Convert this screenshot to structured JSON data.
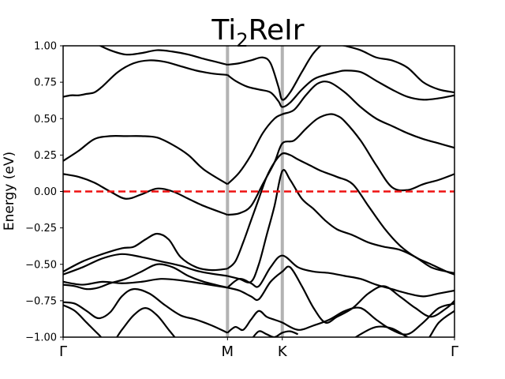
{
  "chart_data": {
    "type": "line",
    "title": "Ti",
    "title_subscript": "2",
    "title_suffix": "ReIr",
    "ylabel": "Energy (eV)",
    "xlabel": "",
    "ylim": [
      -1.0,
      1.0
    ],
    "xlim": [
      0,
      1
    ],
    "yticks": [
      -1.0,
      -0.75,
      -0.5,
      -0.25,
      0.0,
      0.25,
      0.5,
      0.75,
      1.0
    ],
    "ytick_labels": [
      "−1.00",
      "−0.75",
      "−0.50",
      "−0.25",
      "0.00",
      "0.25",
      "0.50",
      "0.75",
      "1.00"
    ],
    "high_symmetry_points": [
      {
        "label": "Γ",
        "x": 0.0
      },
      {
        "label": "M",
        "x": 0.42
      },
      {
        "label": "K",
        "x": 0.56
      },
      {
        "label": "Γ",
        "x": 1.0
      }
    ],
    "fermi_level": {
      "energy": 0.0,
      "color": "#ee1111",
      "style": "dashed"
    },
    "vline_color": "#b3b3b3",
    "band_color": "#000000",
    "grid": false,
    "series": [
      {
        "x": [
          0,
          0.04,
          0.08,
          0.12,
          0.16,
          0.2,
          0.24,
          0.28,
          0.32,
          0.36,
          0.42
        ],
        "values": [
          1.1,
          1.07,
          1.02,
          0.97,
          0.94,
          0.95,
          0.97,
          0.96,
          0.94,
          0.91,
          0.87
        ]
      },
      {
        "x": [
          0.42,
          0.45,
          0.48,
          0.51,
          0.53,
          0.55,
          0.56,
          0.58,
          0.61,
          0.64,
          0.67,
          0.7,
          0.72
        ],
        "values": [
          0.87,
          0.88,
          0.9,
          0.92,
          0.88,
          0.72,
          0.63,
          0.68,
          0.82,
          0.95,
          1.02,
          1.01,
          1.0
        ]
      },
      {
        "x": [
          0.72,
          0.76,
          0.8,
          0.84,
          0.88,
          0.92,
          0.96,
          1.0
        ],
        "values": [
          1.0,
          0.97,
          0.92,
          0.9,
          0.85,
          0.75,
          0.7,
          0.68
        ]
      },
      {
        "x": [
          0,
          0.02,
          0.04,
          0.06,
          0.08,
          0.1,
          0.14,
          0.18,
          0.22,
          0.26,
          0.3,
          0.34,
          0.38,
          0.42
        ],
        "values": [
          0.65,
          0.66,
          0.66,
          0.67,
          0.68,
          0.72,
          0.82,
          0.88,
          0.9,
          0.89,
          0.86,
          0.83,
          0.81,
          0.8
        ]
      },
      {
        "x": [
          0.42,
          0.44,
          0.47,
          0.5,
          0.53,
          0.55,
          0.56,
          0.58,
          0.61,
          0.64,
          0.67,
          0.7,
          0.72,
          0.76,
          0.8,
          0.84,
          0.88,
          0.92,
          0.96,
          1.0
        ],
        "values": [
          0.8,
          0.76,
          0.72,
          0.7,
          0.68,
          0.62,
          0.58,
          0.61,
          0.7,
          0.77,
          0.8,
          0.82,
          0.83,
          0.82,
          0.76,
          0.7,
          0.65,
          0.63,
          0.64,
          0.66
        ]
      },
      {
        "x": [
          0,
          0.04,
          0.08,
          0.12,
          0.16,
          0.2,
          0.24,
          0.28,
          0.32,
          0.36,
          0.42
        ],
        "values": [
          0.21,
          0.28,
          0.36,
          0.38,
          0.38,
          0.38,
          0.37,
          0.32,
          0.25,
          0.15,
          0.05
        ]
      },
      {
        "x": [
          0.42,
          0.45,
          0.48,
          0.51,
          0.54,
          0.56,
          0.59,
          0.62,
          0.65,
          0.68,
          0.72,
          0.76,
          0.8,
          0.84,
          0.88,
          0.92,
          0.96,
          1.0
        ],
        "values": [
          0.05,
          0.13,
          0.25,
          0.4,
          0.5,
          0.53,
          0.56,
          0.66,
          0.74,
          0.75,
          0.68,
          0.58,
          0.5,
          0.45,
          0.4,
          0.36,
          0.33,
          0.3
        ]
      },
      {
        "x": [
          0,
          0.04,
          0.08,
          0.12,
          0.16,
          0.2,
          0.24,
          0.28,
          0.32,
          0.36,
          0.42
        ],
        "values": [
          0.12,
          0.1,
          0.06,
          0.0,
          -0.05,
          -0.02,
          0.02,
          0.0,
          -0.05,
          -0.1,
          -0.16
        ]
      },
      {
        "x": [
          0.42,
          0.45,
          0.48,
          0.51,
          0.54,
          0.56,
          0.59,
          0.62,
          0.65,
          0.68,
          0.7,
          0.72,
          0.76,
          0.8,
          0.84,
          0.88,
          0.92,
          0.96,
          1.0
        ],
        "values": [
          -0.16,
          -0.15,
          -0.1,
          0.05,
          0.2,
          0.33,
          0.35,
          0.43,
          0.5,
          0.53,
          0.52,
          0.48,
          0.35,
          0.18,
          0.03,
          0.01,
          0.05,
          0.08,
          0.12
        ]
      },
      {
        "x": [
          0,
          0.05,
          0.1,
          0.15,
          0.18,
          0.21,
          0.24,
          0.27,
          0.3,
          0.34,
          0.38,
          0.42
        ],
        "values": [
          -0.55,
          -0.48,
          -0.43,
          -0.39,
          -0.38,
          -0.33,
          -0.29,
          -0.33,
          -0.45,
          -0.52,
          -0.54,
          -0.53
        ]
      },
      {
        "x": [
          0.42,
          0.44,
          0.46,
          0.48,
          0.5,
          0.52,
          0.54,
          0.56,
          0.58,
          0.6,
          0.63,
          0.66,
          0.7,
          0.74,
          0.78,
          0.82,
          0.86,
          0.9,
          0.94,
          0.98,
          1.0
        ],
        "values": [
          -0.53,
          -0.48,
          -0.35,
          -0.2,
          -0.05,
          0.1,
          0.2,
          0.26,
          0.25,
          0.22,
          0.18,
          0.14,
          0.1,
          0.05,
          -0.1,
          -0.25,
          -0.37,
          -0.45,
          -0.5,
          -0.55,
          -0.57
        ]
      },
      {
        "x": [
          0,
          0.05,
          0.1,
          0.15,
          0.2,
          0.25,
          0.3,
          0.35,
          0.42
        ],
        "values": [
          -0.57,
          -0.52,
          -0.46,
          -0.43,
          -0.45,
          -0.48,
          -0.51,
          -0.55,
          -0.58
        ]
      },
      {
        "x": [
          0.42,
          0.45,
          0.48,
          0.5,
          0.52,
          0.54,
          0.56,
          0.58,
          0.61,
          0.64,
          0.67,
          0.7,
          0.74,
          0.78,
          0.82,
          0.86,
          0.9,
          0.94,
          0.98,
          1.0
        ],
        "values": [
          -0.58,
          -0.6,
          -0.62,
          -0.5,
          -0.3,
          -0.1,
          0.14,
          0.08,
          -0.05,
          -0.12,
          -0.2,
          -0.26,
          -0.3,
          -0.35,
          -0.38,
          -0.4,
          -0.45,
          -0.52,
          -0.55,
          -0.56
        ]
      },
      {
        "x": [
          0,
          0.05,
          0.1,
          0.15,
          0.2,
          0.25,
          0.3,
          0.35,
          0.42
        ],
        "values": [
          -0.62,
          -0.64,
          -0.62,
          -0.63,
          -0.62,
          -0.6,
          -0.61,
          -0.63,
          -0.66
        ]
      },
      {
        "x": [
          0.42,
          0.45,
          0.48,
          0.5,
          0.53,
          0.56,
          0.6,
          0.64,
          0.68,
          0.72,
          0.76,
          0.8,
          0.84,
          0.88,
          0.92,
          0.96,
          1.0
        ],
        "values": [
          -0.66,
          -0.6,
          -0.63,
          -0.65,
          -0.52,
          -0.44,
          -0.52,
          -0.55,
          -0.56,
          -0.58,
          -0.6,
          -0.64,
          -0.67,
          -0.7,
          -0.72,
          -0.7,
          -0.68
        ]
      },
      {
        "x": [
          0,
          0.03,
          0.06,
          0.09,
          0.12,
          0.16,
          0.2,
          0.24,
          0.28,
          0.32,
          0.36,
          0.42
        ],
        "values": [
          -0.64,
          -0.65,
          -0.67,
          -0.66,
          -0.63,
          -0.6,
          -0.55,
          -0.5,
          -0.52,
          -0.58,
          -0.62,
          -0.66
        ]
      },
      {
        "x": [
          0.42,
          0.45,
          0.48,
          0.5,
          0.53,
          0.56,
          0.58,
          0.61,
          0.64,
          0.67,
          0.7,
          0.74,
          0.78,
          0.82,
          0.86,
          0.9,
          0.94,
          0.98,
          1.0
        ],
        "values": [
          -0.66,
          -0.68,
          -0.72,
          -0.74,
          -0.62,
          -0.55,
          -0.52,
          -0.65,
          -0.8,
          -0.9,
          -0.86,
          -0.8,
          -0.7,
          -0.65,
          -0.72,
          -0.8,
          -0.86,
          -0.8,
          -0.75
        ]
      },
      {
        "x": [
          0,
          0.03,
          0.06,
          0.09,
          0.12,
          0.15,
          0.18,
          0.22,
          0.26,
          0.3,
          0.34,
          0.38,
          0.42
        ],
        "values": [
          -0.76,
          -0.77,
          -0.82,
          -0.87,
          -0.83,
          -0.72,
          -0.67,
          -0.7,
          -0.78,
          -0.85,
          -0.88,
          -0.92,
          -0.97
        ]
      },
      {
        "x": [
          0.42,
          0.44,
          0.46,
          0.48,
          0.5,
          0.52,
          0.54,
          0.56,
          0.6,
          0.64,
          0.68,
          0.72,
          0.76,
          0.8,
          0.84,
          0.88,
          0.92,
          0.96,
          1.0
        ],
        "values": [
          -0.97,
          -0.93,
          -0.95,
          -0.88,
          -0.82,
          -0.86,
          -0.88,
          -0.9,
          -0.95,
          -0.92,
          -0.88,
          -0.82,
          -0.8,
          -0.88,
          -0.95,
          -0.98,
          -0.9,
          -0.8,
          -0.77
        ]
      },
      {
        "x": [
          0,
          0.03,
          0.06,
          0.09,
          0.12,
          0.15,
          0.18,
          0.21,
          0.24,
          0.27,
          0.3
        ],
        "values": [
          -0.78,
          -0.82,
          -0.9,
          -0.98,
          -1.05,
          -0.95,
          -0.85,
          -0.8,
          -0.85,
          -0.95,
          -1.05
        ]
      },
      {
        "x": [
          0.48,
          0.5,
          0.52,
          0.54,
          0.56,
          0.58,
          0.6
        ],
        "values": [
          -1.02,
          -0.96,
          -0.98,
          -1.0,
          -0.97,
          -0.96,
          -0.98
        ]
      },
      {
        "x": [
          0.72,
          0.76,
          0.8,
          0.84,
          0.88,
          0.92,
          0.96,
          1.0
        ],
        "values": [
          -1.05,
          -0.98,
          -0.93,
          -0.94,
          -1.0,
          -1.05,
          -0.9,
          -0.82
        ]
      }
    ]
  }
}
